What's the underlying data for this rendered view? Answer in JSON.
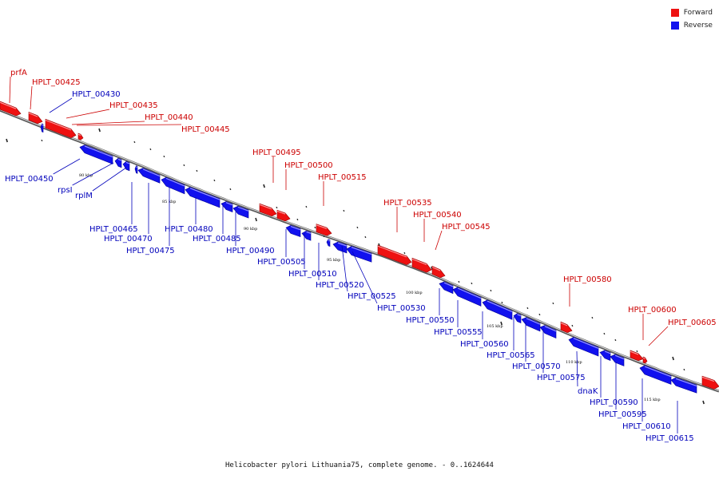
{
  "caption": "Helicobacter pylori Lithuania75, complete genome. - 0..1624644",
  "legend": [
    {
      "label": "Forward",
      "color": "#ee1111"
    },
    {
      "label": "Reverse",
      "color": "#1111ee"
    }
  ],
  "colors": {
    "forward": "#ee1111",
    "reverse": "#1111ee",
    "forward_label": "#cc0000",
    "reverse_label": "#0000bb"
  },
  "ticks": [
    "80 kbp",
    "85 kbp",
    "90 kbp",
    "95 kbp",
    "100 kbp",
    "105 kbp",
    "110 kbp",
    "115 kbp"
  ],
  "forward_genes": [
    "prfA",
    "HPLT_00425",
    "HPLT_00435",
    "HPLT_00440",
    "HPLT_00445",
    "HPLT_00495",
    "HPLT_00500",
    "HPLT_00515",
    "HPLT_00535",
    "HPLT_00540",
    "HPLT_00545",
    "HPLT_00580",
    "HPLT_00600",
    "HPLT_00605"
  ],
  "reverse_genes": [
    "HPLT_00430",
    "HPLT_00450",
    "rpsI",
    "rplM",
    "HPLT_00465",
    "HPLT_00470",
    "HPLT_00475",
    "HPLT_00480",
    "HPLT_00485",
    "HPLT_00490",
    "HPLT_00505",
    "HPLT_00510",
    "HPLT_00520",
    "HPLT_00525",
    "HPLT_00530",
    "HPLT_00550",
    "HPLT_00555",
    "HPLT_00560",
    "HPLT_00565",
    "HPLT_00570",
    "HPLT_00575",
    "dnaK",
    "HPLT_00590",
    "HPLT_00595",
    "HPLT_00610",
    "HPLT_00615"
  ]
}
